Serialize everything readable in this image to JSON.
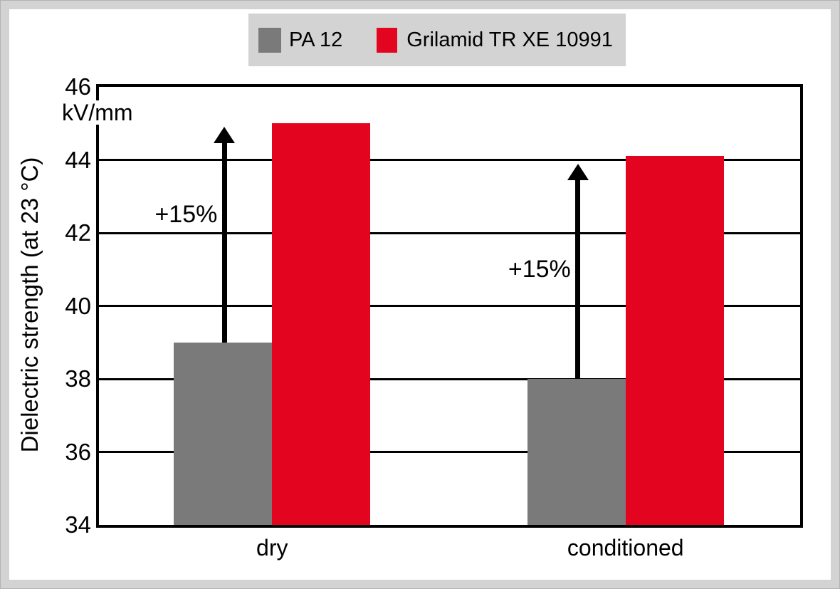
{
  "frame": {
    "background_color": "#d3d3d3",
    "canvas_color": "#ffffff",
    "line_color": "#000000"
  },
  "legend": {
    "background_color": "#d3d3d3",
    "items": [
      {
        "label": "PA 12",
        "color": "#7a7a7a"
      },
      {
        "label": "Grilamid TR XE 10991",
        "color": "#e30520"
      }
    ]
  },
  "chart_data": {
    "type": "bar",
    "title": "",
    "ylabel": "Dielectric strength (at 23 °C)",
    "y_unit": "kV/mm",
    "xlabel": "",
    "ylim": [
      34,
      46
    ],
    "yticks": [
      46,
      44,
      42,
      40,
      38,
      36,
      34
    ],
    "grid": true,
    "legend_position": "top",
    "categories": [
      "dry",
      "conditioned"
    ],
    "series": [
      {
        "name": "PA 12",
        "color": "#7a7a7a",
        "values": [
          39.0,
          38.0
        ]
      },
      {
        "name": "Grilamid TR XE 10991",
        "color": "#e30520",
        "values": [
          45.0,
          44.1
        ]
      }
    ],
    "annotations": [
      {
        "category": "dry",
        "text": "+15%",
        "arrow_from": 39.0,
        "arrow_to": 44.9,
        "label_center_y": 42.5
      },
      {
        "category": "conditioned",
        "text": "+15%",
        "arrow_from": 38.0,
        "arrow_to": 43.9,
        "label_center_y": 41.0
      }
    ],
    "layout": {
      "group_centers_pct": [
        24.7,
        75.1
      ],
      "bar_width_pct": 14.0
    }
  }
}
